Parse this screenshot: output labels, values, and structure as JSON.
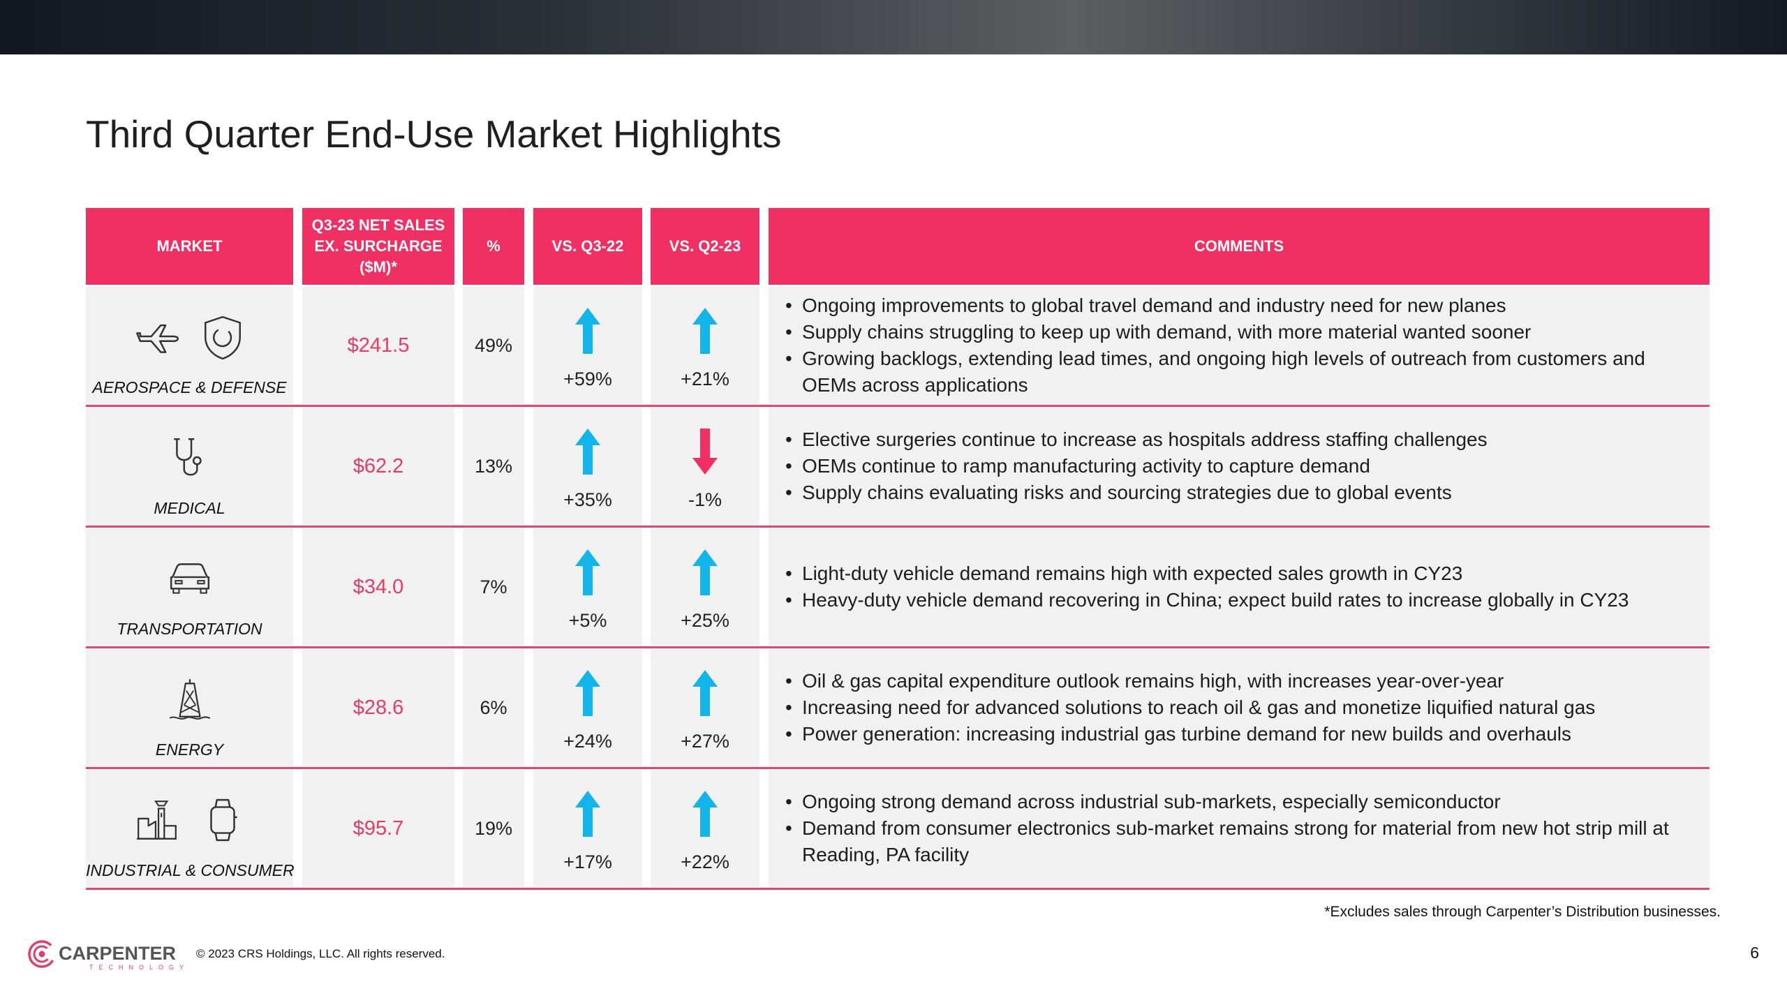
{
  "slide": {
    "title": "Third Quarter End-Use Market Highlights",
    "footnote": "*Excludes sales through Carpenter’s Distribution businesses.",
    "copyright": "© 2023 CRS Holdings, LLC. All rights reserved.",
    "page_number": "6",
    "logo": {
      "name": "CARPENTER",
      "sub": "TECHNOLOGY"
    }
  },
  "colors": {
    "accent": "#f03063",
    "up_arrow": "#12b5e9",
    "down_arrow": "#f03063",
    "row_bg": "#f1f1f1"
  },
  "table": {
    "headers": {
      "market": "MARKET",
      "sales": "Q3-23 NET SALES\nEX. SURCHARGE\n($M)*",
      "pct": "%",
      "vs_q3": "VS. Q3-22",
      "vs_q2": "VS. Q2-23",
      "comments": "COMMENTS"
    },
    "rows": [
      {
        "market": "AEROSPACE & DEFENSE",
        "icons": [
          "airplane-icon",
          "shield-icon"
        ],
        "sales": "$241.5",
        "pct": "49%",
        "vs_q3": "+59%",
        "vs_q3_dir": "up",
        "vs_q2": "+21%",
        "vs_q2_dir": "up",
        "comments": [
          "Ongoing improvements to global travel demand and industry need for new planes",
          "Supply chains struggling to keep up with demand, with more material wanted sooner",
          "Growing backlogs, extending lead times, and ongoing high levels of outreach from customers and OEMs across applications"
        ]
      },
      {
        "market": "MEDICAL",
        "icons": [
          "stethoscope-icon"
        ],
        "sales": "$62.2",
        "pct": "13%",
        "vs_q3": "+35%",
        "vs_q3_dir": "up",
        "vs_q2": "-1%",
        "vs_q2_dir": "down",
        "comments": [
          "Elective surgeries continue to increase as hospitals address staffing challenges",
          "OEMs continue to ramp manufacturing activity to capture demand",
          "Supply chains evaluating risks and sourcing strategies due to global events"
        ]
      },
      {
        "market": "TRANSPORTATION",
        "icons": [
          "car-icon"
        ],
        "sales": "$34.0",
        "pct": "7%",
        "vs_q3": "+5%",
        "vs_q3_dir": "up",
        "vs_q2": "+25%",
        "vs_q2_dir": "up",
        "comments": [
          "Light-duty vehicle demand remains high with expected sales growth in CY23",
          "Heavy-duty vehicle demand recovering in China; expect build rates to increase globally in CY23"
        ]
      },
      {
        "market": "ENERGY",
        "icons": [
          "oil-rig-icon"
        ],
        "sales": "$28.6",
        "pct": "6%",
        "vs_q3": "+24%",
        "vs_q3_dir": "up",
        "vs_q2": "+27%",
        "vs_q2_dir": "up",
        "comments": [
          "Oil & gas capital expenditure outlook remains high, with increases year-over-year",
          "Increasing need for advanced solutions to reach oil & gas and monetize liquified natural gas",
          "Power generation: increasing industrial gas turbine demand for new builds and overhauls"
        ]
      },
      {
        "market": "INDUSTRIAL & CONSUMER",
        "icons": [
          "factory-icon",
          "smartwatch-icon"
        ],
        "sales": "$95.7",
        "pct": "19%",
        "vs_q3": "+17%",
        "vs_q3_dir": "up",
        "vs_q2": "+22%",
        "vs_q2_dir": "up",
        "comments": [
          "Ongoing strong demand across industrial sub-markets, especially semiconductor",
          "Demand from consumer electronics sub-market remains strong for material from new hot strip mill at Reading, PA facility"
        ]
      }
    ]
  }
}
